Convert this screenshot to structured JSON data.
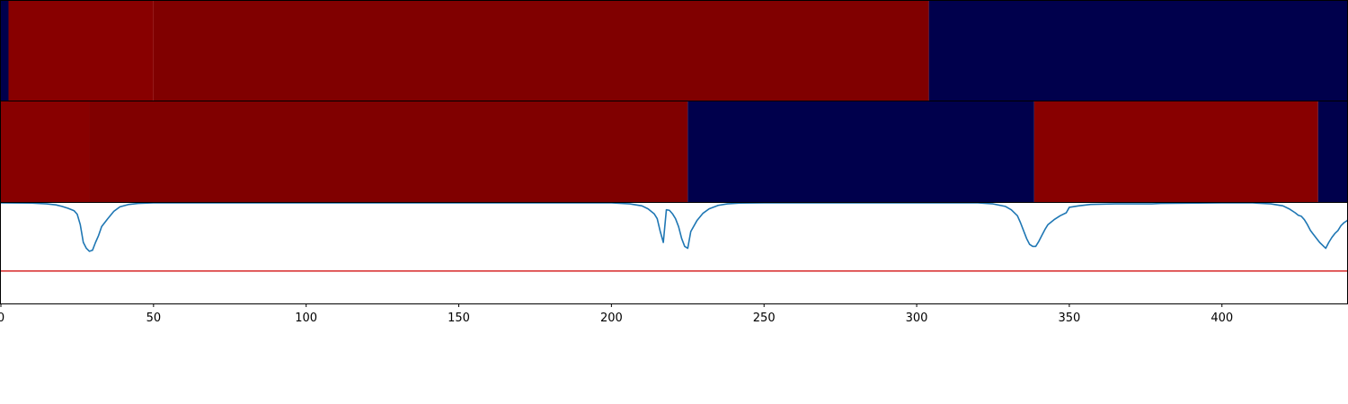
{
  "chart_data": [
    {
      "type": "heatmap",
      "xlim": [
        0,
        441
      ],
      "segments": [
        {
          "start": 0,
          "end": 2.5,
          "color": "#00004c"
        },
        {
          "start": 2.5,
          "end": 50,
          "color": "#880000"
        },
        {
          "start": 50,
          "end": 304,
          "color": "#800000"
        },
        {
          "start": 304,
          "end": 441,
          "color": "#00004c"
        }
      ]
    },
    {
      "type": "heatmap",
      "xlim": [
        0,
        441
      ],
      "segments": [
        {
          "start": 0,
          "end": 29,
          "color": "#880000"
        },
        {
          "start": 29,
          "end": 225,
          "color": "#800000"
        },
        {
          "start": 225,
          "end": 338.5,
          "color": "#00004c"
        },
        {
          "start": 338.5,
          "end": 431.5,
          "color": "#880000"
        },
        {
          "start": 431.5,
          "end": 441,
          "color": "#00004c"
        }
      ]
    },
    {
      "type": "line",
      "xlim": [
        0,
        441
      ],
      "ylim": [
        0,
        1
      ],
      "xticks": [
        0,
        50,
        100,
        150,
        200,
        250,
        300,
        350,
        400
      ],
      "xtick_labels": [
        "0",
        "50",
        "100",
        "150",
        "200",
        "250",
        "300",
        "350",
        "400"
      ],
      "threshold": {
        "value": 0.31,
        "color": "#d62728"
      },
      "series": [
        {
          "color": "#1f77b4",
          "points": [
            [
              0,
              1.0
            ],
            [
              10,
              0.998
            ],
            [
              15,
              0.99
            ],
            [
              18,
              0.98
            ],
            [
              20,
              0.965
            ],
            [
              22,
              0.945
            ],
            [
              24,
              0.92
            ],
            [
              25,
              0.885
            ],
            [
              26,
              0.78
            ],
            [
              27,
              0.6
            ],
            [
              28,
              0.54
            ],
            [
              29,
              0.51
            ],
            [
              30,
              0.52
            ],
            [
              31,
              0.6
            ],
            [
              32,
              0.67
            ],
            [
              33,
              0.76
            ],
            [
              35,
              0.84
            ],
            [
              37,
              0.915
            ],
            [
              39,
              0.96
            ],
            [
              42,
              0.985
            ],
            [
              45,
              0.995
            ],
            [
              50,
              1.0
            ],
            [
              200,
              1.0
            ],
            [
              206,
              0.99
            ],
            [
              210,
              0.97
            ],
            [
              212,
              0.94
            ],
            [
              214,
              0.89
            ],
            [
              215,
              0.84
            ],
            [
              216,
              0.71
            ],
            [
              217,
              0.6
            ],
            [
              218,
              0.93
            ],
            [
              219,
              0.925
            ],
            [
              220,
              0.89
            ],
            [
              221,
              0.84
            ],
            [
              222,
              0.76
            ],
            [
              223,
              0.64
            ],
            [
              224,
              0.56
            ],
            [
              225,
              0.54
            ],
            [
              226,
              0.71
            ],
            [
              228,
              0.82
            ],
            [
              230,
              0.895
            ],
            [
              232,
              0.94
            ],
            [
              235,
              0.975
            ],
            [
              238,
              0.99
            ],
            [
              242,
              0.998
            ],
            [
              250,
              1.0
            ],
            [
              320,
              1.0
            ],
            [
              325,
              0.99
            ],
            [
              329,
              0.965
            ],
            [
              331,
              0.93
            ],
            [
              333,
              0.87
            ],
            [
              334,
              0.8
            ],
            [
              335,
              0.72
            ],
            [
              336,
              0.64
            ],
            [
              337,
              0.58
            ],
            [
              338,
              0.56
            ],
            [
              339,
              0.56
            ],
            [
              340,
              0.61
            ],
            [
              341,
              0.67
            ],
            [
              342,
              0.73
            ],
            [
              343,
              0.78
            ],
            [
              345,
              0.83
            ],
            [
              347,
              0.87
            ],
            [
              349,
              0.9
            ],
            [
              350,
              0.955
            ],
            [
              353,
              0.97
            ],
            [
              357,
              0.985
            ],
            [
              365,
              0.99
            ],
            [
              377,
              0.99
            ],
            [
              380,
              0.995
            ],
            [
              400,
              1.0
            ],
            [
              410,
              1.0
            ],
            [
              416,
              0.99
            ],
            [
              420,
              0.97
            ],
            [
              422,
              0.94
            ],
            [
              424,
              0.9
            ],
            [
              425,
              0.875
            ],
            [
              426,
              0.865
            ],
            [
              427,
              0.83
            ],
            [
              428,
              0.78
            ],
            [
              429,
              0.72
            ],
            [
              430,
              0.68
            ],
            [
              431,
              0.64
            ],
            [
              432,
              0.6
            ],
            [
              433,
              0.57
            ],
            [
              434,
              0.54
            ],
            [
              435,
              0.6
            ],
            [
              436,
              0.65
            ],
            [
              437,
              0.69
            ],
            [
              438,
              0.72
            ],
            [
              439,
              0.77
            ],
            [
              440,
              0.8
            ],
            [
              441,
              0.82
            ],
            [
              442,
              0.86
            ],
            [
              443,
              0.89
            ],
            [
              444,
              0.915
            ],
            [
              445,
              0.94
            ],
            [
              446,
              0.97
            ],
            [
              448,
              0.99
            ],
            [
              450,
              1.0
            ]
          ]
        }
      ]
    }
  ]
}
